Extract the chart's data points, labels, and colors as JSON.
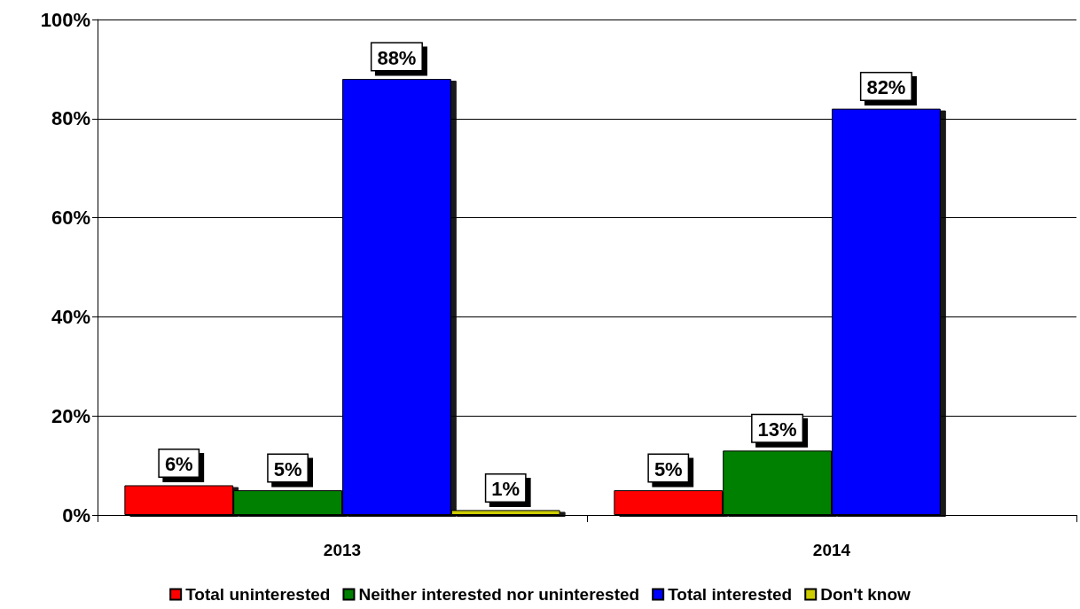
{
  "chart_data": {
    "type": "bar",
    "categories": [
      "2013",
      "2014"
    ],
    "series": [
      {
        "name": "Total uninterested",
        "color": "#ff0000",
        "values": [
          6,
          5
        ],
        "value_labels": [
          "6%",
          "5%"
        ]
      },
      {
        "name": "Neither interested nor uninterested",
        "color": "#008000",
        "values": [
          5,
          13
        ],
        "value_labels": [
          "5%",
          "13%"
        ]
      },
      {
        "name": "Total interested",
        "color": "#0000ff",
        "values": [
          88,
          82
        ],
        "value_labels": [
          "88%",
          "82%"
        ]
      },
      {
        "name": "Don't know",
        "color": "#cccc00",
        "values": [
          1,
          null
        ],
        "value_labels": [
          "1%",
          null
        ]
      }
    ],
    "ylim": [
      0,
      100
    ],
    "yticks": [
      {
        "value": 0,
        "label": "0%"
      },
      {
        "value": 20,
        "label": "20%"
      },
      {
        "value": 40,
        "label": "40%"
      },
      {
        "value": 60,
        "label": "60%"
      },
      {
        "value": 80,
        "label": "80%"
      },
      {
        "value": 100,
        "label": "100%"
      }
    ],
    "grid": "y",
    "legend": "bottom"
  }
}
